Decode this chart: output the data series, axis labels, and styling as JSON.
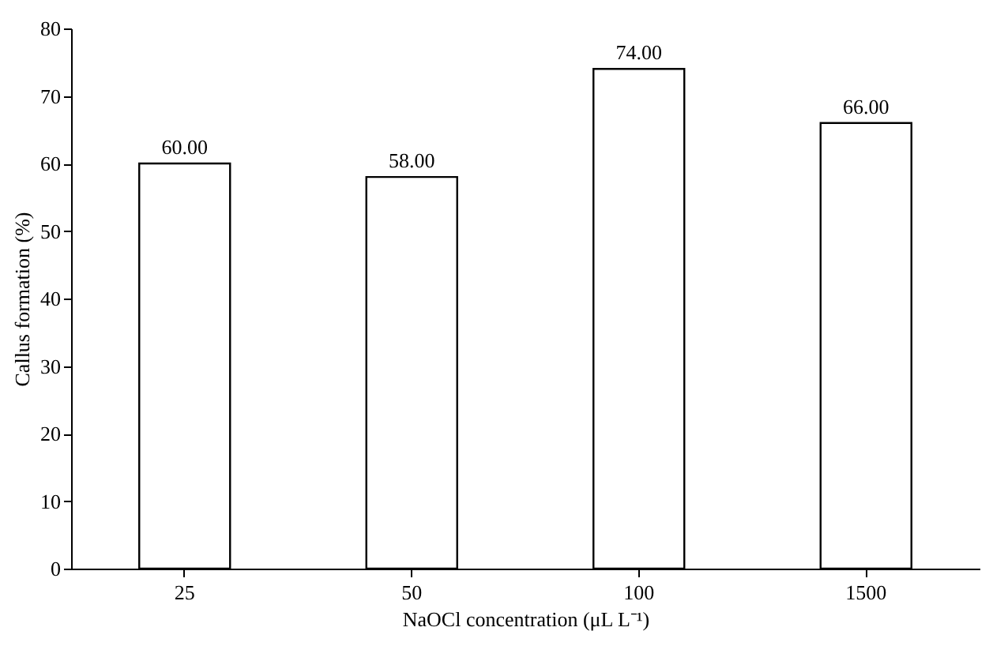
{
  "chart_data": {
    "type": "bar",
    "xlabel": "NaOCl concentration (μL L⁻¹)",
    "ylabel": "Callus formation (%)",
    "categories": [
      "25",
      "50",
      "100",
      "1500"
    ],
    "values": [
      60,
      58,
      74,
      66
    ],
    "value_labels": [
      "60.00",
      "58.00",
      "74.00",
      "66.00"
    ],
    "color": "#ffffff",
    "ylim": [
      0,
      80
    ],
    "yticks": [
      0,
      10,
      20,
      30,
      40,
      50,
      60,
      70,
      80
    ],
    "grid": false
  }
}
